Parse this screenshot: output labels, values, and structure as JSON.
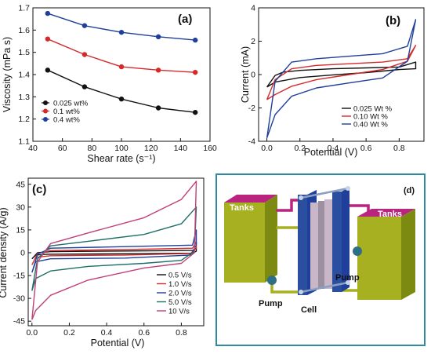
{
  "colors": {
    "black": "#111111",
    "red": "#d42a2a",
    "blue": "#1f3f9a",
    "teal": "#1f6f68",
    "magenta": "#c0407a",
    "panel_d_border": "#2f8aa0",
    "tank_olive": "#a6b020",
    "tank_magenta": "#b8247e",
    "plate_blue": "#2a4ea0"
  },
  "chart_data": [
    {
      "panel_label": "(a)",
      "type": "line",
      "xlabel": "Shear rate (s⁻¹)",
      "ylabel": "Viscosity (mPa s)",
      "xlim": [
        40,
        160
      ],
      "ylim": [
        1.1,
        1.7
      ],
      "x_ticks": [
        "40",
        "60",
        "80",
        "100",
        "120",
        "140",
        "160"
      ],
      "y_ticks": [
        "1.1",
        "1.2",
        "1.3",
        "1.4",
        "1.5",
        "1.6",
        "1.7"
      ],
      "legend_position": "bottom-left",
      "x": [
        50,
        75,
        100,
        125,
        150
      ],
      "series": [
        {
          "name": "0.025 wt%",
          "color": "#111111",
          "values": [
            1.42,
            1.345,
            1.29,
            1.25,
            1.23
          ]
        },
        {
          "name": "0.1 wt%",
          "color": "#d42a2a",
          "values": [
            1.56,
            1.49,
            1.435,
            1.42,
            1.41
          ]
        },
        {
          "name": "0.4 wt%",
          "color": "#1f3f9a",
          "values": [
            1.675,
            1.62,
            1.59,
            1.57,
            1.555
          ]
        }
      ]
    },
    {
      "panel_label": "(b)",
      "type": "line",
      "xlabel": "Potential (V)",
      "ylabel": "Current (mA)",
      "xlim": [
        -0.05,
        0.95
      ],
      "ylim": [
        -4,
        4
      ],
      "x_ticks": [
        "0.0",
        "0.2",
        "0.4",
        "0.6",
        "0.8"
      ],
      "y_ticks": [
        "-4",
        "-2",
        "0",
        "2",
        "4"
      ],
      "legend_position": "bottom-right",
      "series": [
        {
          "name": "0.025 Wt %",
          "color": "#111111",
          "loop": [
            [
              0.0,
              -0.75
            ],
            [
              0.05,
              -0.45
            ],
            [
              0.2,
              -0.18
            ],
            [
              0.4,
              -0.02
            ],
            [
              0.6,
              0.12
            ],
            [
              0.8,
              0.3
            ],
            [
              0.9,
              0.35
            ],
            [
              0.9,
              0.75
            ],
            [
              0.8,
              0.45
            ],
            [
              0.6,
              0.4
            ],
            [
              0.4,
              0.35
            ],
            [
              0.2,
              0.25
            ],
            [
              0.1,
              0.15
            ],
            [
              0.05,
              -0.05
            ],
            [
              0.0,
              -0.75
            ]
          ]
        },
        {
          "name": "0.10 Wt %",
          "color": "#d42a2a",
          "loop": [
            [
              0.0,
              -1.5
            ],
            [
              0.05,
              -1.2
            ],
            [
              0.15,
              -0.7
            ],
            [
              0.3,
              -0.3
            ],
            [
              0.5,
              0.0
            ],
            [
              0.7,
              0.3
            ],
            [
              0.85,
              0.8
            ],
            [
              0.9,
              1.75
            ],
            [
              0.85,
              0.95
            ],
            [
              0.7,
              0.75
            ],
            [
              0.5,
              0.65
            ],
            [
              0.3,
              0.55
            ],
            [
              0.15,
              0.35
            ],
            [
              0.05,
              -0.3
            ],
            [
              0.0,
              -1.5
            ]
          ]
        },
        {
          "name": "0.40 Wt %",
          "color": "#1f3f9a",
          "loop": [
            [
              0.0,
              -3.8
            ],
            [
              0.05,
              -2.4
            ],
            [
              0.15,
              -1.3
            ],
            [
              0.3,
              -0.8
            ],
            [
              0.5,
              -0.5
            ],
            [
              0.7,
              -0.2
            ],
            [
              0.85,
              0.8
            ],
            [
              0.9,
              3.3
            ],
            [
              0.85,
              1.7
            ],
            [
              0.7,
              1.25
            ],
            [
              0.5,
              1.1
            ],
            [
              0.3,
              0.95
            ],
            [
              0.15,
              0.75
            ],
            [
              0.05,
              -0.4
            ],
            [
              0.0,
              -3.8
            ]
          ]
        }
      ]
    },
    {
      "panel_label": "(c)",
      "type": "line",
      "xlabel": "Potential (V)",
      "ylabel": "Current density (A/g)",
      "xlim": [
        -0.02,
        0.92
      ],
      "ylim": [
        -48,
        49
      ],
      "x_ticks": [
        "0.0",
        "0.2",
        "0.4",
        "0.6",
        "0.8"
      ],
      "y_ticks": [
        "-45",
        "-30",
        "-15",
        "0",
        "15",
        "30",
        "45"
      ],
      "legend_position": "bottom-right",
      "series": [
        {
          "name": "0.5 V/s",
          "color": "#111111",
          "loop": [
            [
              0.0,
              -4
            ],
            [
              0.02,
              -1.5
            ],
            [
              0.08,
              -1
            ],
            [
              0.5,
              -0.7
            ],
            [
              0.86,
              -0.3
            ],
            [
              0.88,
              1
            ],
            [
              0.88,
              3
            ],
            [
              0.86,
              1.5
            ],
            [
              0.5,
              1.1
            ],
            [
              0.1,
              0.7
            ],
            [
              0.03,
              0
            ],
            [
              0.0,
              -4
            ]
          ]
        },
        {
          "name": "1.0 V/s",
          "color": "#d42a2a",
          "loop": [
            [
              0.0,
              -8
            ],
            [
              0.02,
              -3
            ],
            [
              0.1,
              -2
            ],
            [
              0.5,
              -1.5
            ],
            [
              0.85,
              -0.5
            ],
            [
              0.88,
              3
            ],
            [
              0.88,
              7
            ],
            [
              0.86,
              3
            ],
            [
              0.5,
              2.1
            ],
            [
              0.1,
              1.4
            ],
            [
              0.03,
              -0.5
            ],
            [
              0.0,
              -8
            ]
          ]
        },
        {
          "name": "2.0 V/s",
          "color": "#1f3f9a",
          "loop": [
            [
              0.0,
              -13
            ],
            [
              0.02,
              -6
            ],
            [
              0.1,
              -4
            ],
            [
              0.5,
              -3.5
            ],
            [
              0.85,
              -1.5
            ],
            [
              0.88,
              5
            ],
            [
              0.88,
              15
            ],
            [
              0.86,
              5
            ],
            [
              0.5,
              4
            ],
            [
              0.1,
              3
            ],
            [
              0.03,
              -1
            ],
            [
              0.0,
              -13
            ]
          ]
        },
        {
          "name": "5.0 V/s",
          "color": "#1f6f68",
          "loop": [
            [
              0.0,
              -25
            ],
            [
              0.02,
              -17
            ],
            [
              0.1,
              -12
            ],
            [
              0.3,
              -9
            ],
            [
              0.6,
              -7
            ],
            [
              0.8,
              -5
            ],
            [
              0.87,
              1
            ],
            [
              0.88,
              30
            ],
            [
              0.8,
              19
            ],
            [
              0.6,
              12
            ],
            [
              0.3,
              7.5
            ],
            [
              0.1,
              4.5
            ],
            [
              0.03,
              -4
            ],
            [
              0.0,
              -25
            ]
          ]
        },
        {
          "name": "10 V/s",
          "color": "#c0407a",
          "loop": [
            [
              0.0,
              -44
            ],
            [
              0.02,
              -38
            ],
            [
              0.1,
              -28
            ],
            [
              0.3,
              -18
            ],
            [
              0.6,
              -10
            ],
            [
              0.8,
              -7
            ],
            [
              0.87,
              0
            ],
            [
              0.88,
              47
            ],
            [
              0.8,
              35
            ],
            [
              0.6,
              23
            ],
            [
              0.3,
              13
            ],
            [
              0.1,
              6
            ],
            [
              0.03,
              -6
            ],
            [
              0.0,
              -44
            ]
          ]
        }
      ]
    }
  ],
  "diagram_d": {
    "panel_label": "(d)",
    "tank_left_label": "Tanks",
    "tank_right_label": "Tanks",
    "pump_left_label": "Pump",
    "pump_right_label": "Pump",
    "cell_label": "Cell"
  }
}
